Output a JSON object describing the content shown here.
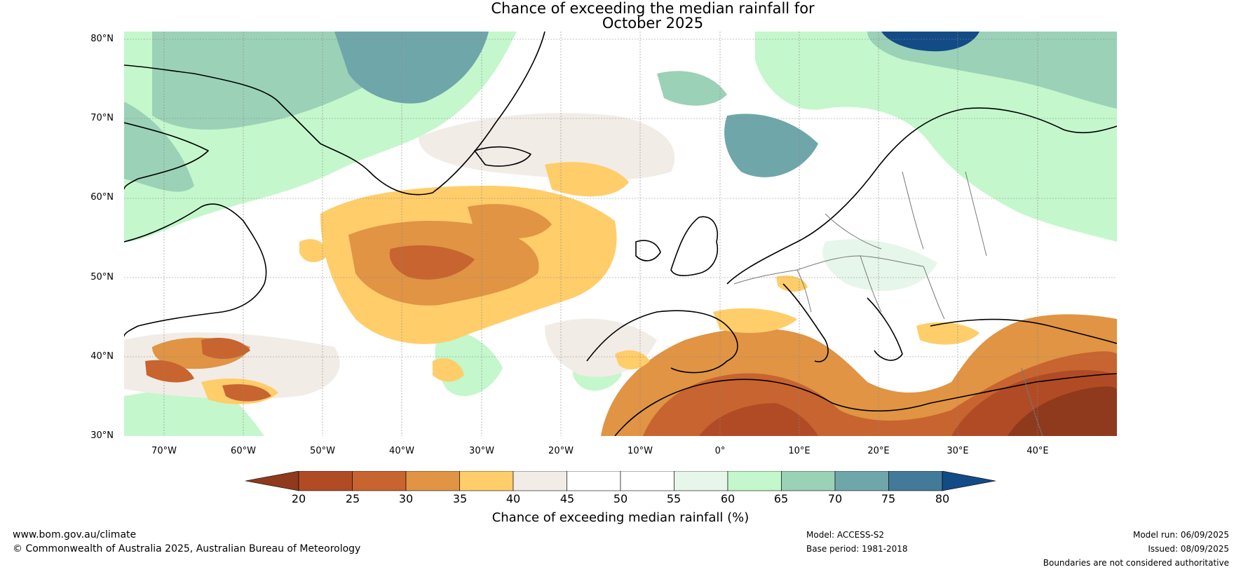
{
  "title": {
    "line1": "Chance of exceeding the median rainfall for",
    "line2": "October 2025"
  },
  "map": {
    "lat_labels": [
      "80°N",
      "70°N",
      "60°N",
      "50°N",
      "40°N",
      "30°N"
    ],
    "lon_labels": [
      "70°W",
      "60°W",
      "50°W",
      "40°W",
      "30°W",
      "20°W",
      "10°W",
      "0°",
      "10°E",
      "20°E",
      "30°E",
      "40°E"
    ],
    "extent": {
      "lon_min": -75,
      "lon_max": 50,
      "lat_min": 30,
      "lat_max": 81
    },
    "gridlines": true
  },
  "colorbar": {
    "ticks": [
      "20",
      "25",
      "30",
      "35",
      "40",
      "45",
      "50",
      "55",
      "60",
      "65",
      "70",
      "75",
      "80"
    ],
    "colors": [
      "#8f3a1d",
      "#b14b26",
      "#c8642f",
      "#e09444",
      "#ffcd6a",
      "#f2ece7",
      "#ffffff",
      "#ffffff",
      "#e6f6ea",
      "#c4f7cc",
      "#9bd1b7",
      "#6fa6aa",
      "#437a99"
    ],
    "under_color": "#8f3a1d",
    "over_color": "#134b87",
    "label": "Chance of exceeding median rainfall (%)"
  },
  "footer": {
    "url": "www.bom.gov.au/climate",
    "copyright": "© Commonwealth of Australia 2025, Australian Bureau of Meteorology",
    "model": "Model: ACCESS-S2",
    "base_period": "Base period: 1981-2018",
    "model_run": "Model run: 06/09/2025",
    "issued": "Issued: 08/09/2025",
    "boundaries_note": "Boundaries are not considered authoritative"
  }
}
